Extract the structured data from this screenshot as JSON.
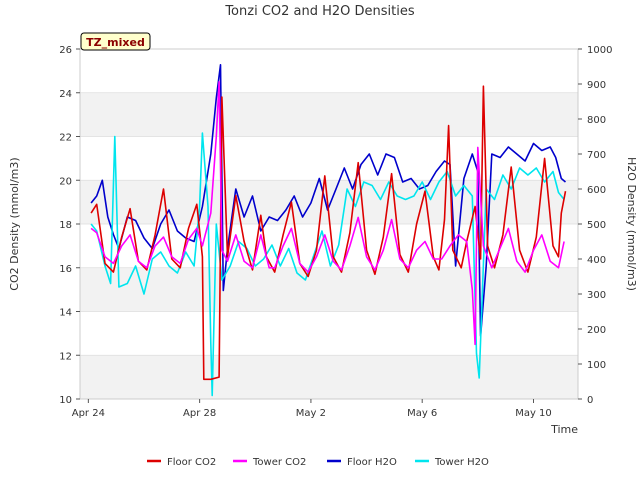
{
  "chart_data": {
    "type": "line",
    "title": "Tonzi CO2 and H2O Densities",
    "xlabel": "Time",
    "ylabel_left": "CO2 Density (mmol/m3)",
    "ylabel_right": "H2O Density (mmol/m3)",
    "ylim_left": [
      10,
      26
    ],
    "ylim_right": [
      0,
      1000
    ],
    "yticks_left": [
      10,
      12,
      14,
      16,
      18,
      20,
      22,
      24,
      26
    ],
    "yticks_right": [
      0,
      100,
      200,
      300,
      400,
      500,
      600,
      700,
      800,
      900,
      1000
    ],
    "xlim_days": [
      23.7,
      41.6
    ],
    "xticks": [
      {
        "day": 24,
        "label": "Apr 24"
      },
      {
        "day": 28,
        "label": "Apr 28"
      },
      {
        "day": 32,
        "label": "May 2"
      },
      {
        "day": 36,
        "label": "May 6"
      },
      {
        "day": 40,
        "label": "May 10"
      }
    ],
    "grid": "horizontal bands",
    "legend_position": "bottom",
    "annotation": "TZ_mixed",
    "series": [
      {
        "name": "Floor CO2",
        "axis": "left",
        "color": "#dd0000",
        "points": [
          [
            24.1,
            18.5
          ],
          [
            24.3,
            18.9
          ],
          [
            24.6,
            16.2
          ],
          [
            24.9,
            15.8
          ],
          [
            25.2,
            17.4
          ],
          [
            25.5,
            18.7
          ],
          [
            25.8,
            16.3
          ],
          [
            26.1,
            15.9
          ],
          [
            26.4,
            17.5
          ],
          [
            26.7,
            19.6
          ],
          [
            27.0,
            16.4
          ],
          [
            27.3,
            16.0
          ],
          [
            27.6,
            17.8
          ],
          [
            27.9,
            18.9
          ],
          [
            28.1,
            16.5
          ],
          [
            28.15,
            10.9
          ],
          [
            28.4,
            10.9
          ],
          [
            28.7,
            11.0
          ],
          [
            28.8,
            23.8
          ],
          [
            29.0,
            16.5
          ],
          [
            29.3,
            19.3
          ],
          [
            29.6,
            17.2
          ],
          [
            29.9,
            15.9
          ],
          [
            30.2,
            18.4
          ],
          [
            30.4,
            16.5
          ],
          [
            30.7,
            15.8
          ],
          [
            31.0,
            17.5
          ],
          [
            31.3,
            19.0
          ],
          [
            31.6,
            16.2
          ],
          [
            31.9,
            15.6
          ],
          [
            32.2,
            16.8
          ],
          [
            32.5,
            20.2
          ],
          [
            32.8,
            16.5
          ],
          [
            33.1,
            15.8
          ],
          [
            33.4,
            17.6
          ],
          [
            33.7,
            20.8
          ],
          [
            34.0,
            16.8
          ],
          [
            34.3,
            15.7
          ],
          [
            34.6,
            17.4
          ],
          [
            34.9,
            20.3
          ],
          [
            35.2,
            16.6
          ],
          [
            35.5,
            15.8
          ],
          [
            35.8,
            18.0
          ],
          [
            36.1,
            19.5
          ],
          [
            36.4,
            16.5
          ],
          [
            36.6,
            15.9
          ],
          [
            36.8,
            18.2
          ],
          [
            36.95,
            22.5
          ],
          [
            37.1,
            16.8
          ],
          [
            37.4,
            16.0
          ],
          [
            37.6,
            17.2
          ],
          [
            37.9,
            18.8
          ],
          [
            38.1,
            16.4
          ],
          [
            38.2,
            24.3
          ],
          [
            38.35,
            17.0
          ],
          [
            38.6,
            16.0
          ],
          [
            38.9,
            17.5
          ],
          [
            39.2,
            20.6
          ],
          [
            39.5,
            16.8
          ],
          [
            39.8,
            15.8
          ],
          [
            40.1,
            17.4
          ],
          [
            40.4,
            21.0
          ],
          [
            40.7,
            17.0
          ],
          [
            40.9,
            16.5
          ],
          [
            41.0,
            18.5
          ],
          [
            41.15,
            19.5
          ]
        ]
      },
      {
        "name": "Tower CO2",
        "axis": "left",
        "color": "#ff00ff",
        "points": [
          [
            24.1,
            17.8
          ],
          [
            24.3,
            17.6
          ],
          [
            24.6,
            16.5
          ],
          [
            24.9,
            16.2
          ],
          [
            25.2,
            17.0
          ],
          [
            25.5,
            17.5
          ],
          [
            25.8,
            16.3
          ],
          [
            26.1,
            16.0
          ],
          [
            26.4,
            17.0
          ],
          [
            26.7,
            17.4
          ],
          [
            27.0,
            16.5
          ],
          [
            27.3,
            16.2
          ],
          [
            27.6,
            17.3
          ],
          [
            27.9,
            17.8
          ],
          [
            28.1,
            17.0
          ],
          [
            28.4,
            18.5
          ],
          [
            28.6,
            22.0
          ],
          [
            28.7,
            24.5
          ],
          [
            28.8,
            16.8
          ],
          [
            29.0,
            16.3
          ],
          [
            29.3,
            17.5
          ],
          [
            29.6,
            16.3
          ],
          [
            29.9,
            16.0
          ],
          [
            30.2,
            17.5
          ],
          [
            30.5,
            16.0
          ],
          [
            30.7,
            16.0
          ],
          [
            31.0,
            17.0
          ],
          [
            31.3,
            17.8
          ],
          [
            31.6,
            16.2
          ],
          [
            31.9,
            15.8
          ],
          [
            32.2,
            16.5
          ],
          [
            32.5,
            17.5
          ],
          [
            32.8,
            16.3
          ],
          [
            33.1,
            15.9
          ],
          [
            33.4,
            17.0
          ],
          [
            33.7,
            18.3
          ],
          [
            34.0,
            16.5
          ],
          [
            34.3,
            15.9
          ],
          [
            34.6,
            16.8
          ],
          [
            34.9,
            18.2
          ],
          [
            35.2,
            16.4
          ],
          [
            35.5,
            16.0
          ],
          [
            35.8,
            16.8
          ],
          [
            36.1,
            17.2
          ],
          [
            36.4,
            16.4
          ],
          [
            36.7,
            16.4
          ],
          [
            37.0,
            17.0
          ],
          [
            37.3,
            17.5
          ],
          [
            37.6,
            17.2
          ],
          [
            37.8,
            15.0
          ],
          [
            37.9,
            12.5
          ],
          [
            38.0,
            21.5
          ],
          [
            38.2,
            17.0
          ],
          [
            38.5,
            16.0
          ],
          [
            38.8,
            16.9
          ],
          [
            39.1,
            17.8
          ],
          [
            39.4,
            16.3
          ],
          [
            39.7,
            15.8
          ],
          [
            40.0,
            16.8
          ],
          [
            40.3,
            17.5
          ],
          [
            40.6,
            16.3
          ],
          [
            40.9,
            16.0
          ],
          [
            41.1,
            17.2
          ]
        ]
      },
      {
        "name": "Floor H2O",
        "axis": "right",
        "color": "#0000cc",
        "points": [
          [
            24.1,
            560
          ],
          [
            24.3,
            580
          ],
          [
            24.5,
            625
          ],
          [
            24.7,
            520
          ],
          [
            24.9,
            470
          ],
          [
            25.1,
            430
          ],
          [
            25.4,
            520
          ],
          [
            25.7,
            510
          ],
          [
            26.0,
            460
          ],
          [
            26.3,
            430
          ],
          [
            26.6,
            500
          ],
          [
            26.9,
            540
          ],
          [
            27.2,
            480
          ],
          [
            27.5,
            460
          ],
          [
            27.8,
            450
          ],
          [
            28.1,
            550
          ],
          [
            28.4,
            700
          ],
          [
            28.6,
            860
          ],
          [
            28.75,
            955
          ],
          [
            28.85,
            310
          ],
          [
            29.0,
            430
          ],
          [
            29.3,
            600
          ],
          [
            29.6,
            520
          ],
          [
            29.9,
            580
          ],
          [
            30.2,
            480
          ],
          [
            30.5,
            520
          ],
          [
            30.8,
            510
          ],
          [
            31.1,
            540
          ],
          [
            31.4,
            580
          ],
          [
            31.7,
            520
          ],
          [
            32.0,
            560
          ],
          [
            32.3,
            630
          ],
          [
            32.6,
            540
          ],
          [
            32.9,
            600
          ],
          [
            33.2,
            660
          ],
          [
            33.5,
            600
          ],
          [
            33.8,
            670
          ],
          [
            34.1,
            700
          ],
          [
            34.4,
            640
          ],
          [
            34.7,
            700
          ],
          [
            35.0,
            690
          ],
          [
            35.3,
            620
          ],
          [
            35.6,
            630
          ],
          [
            35.9,
            600
          ],
          [
            36.2,
            610
          ],
          [
            36.5,
            650
          ],
          [
            36.8,
            680
          ],
          [
            37.0,
            670
          ],
          [
            37.2,
            380
          ],
          [
            37.5,
            630
          ],
          [
            37.8,
            700
          ],
          [
            38.0,
            650
          ],
          [
            38.1,
            180
          ],
          [
            38.3,
            380
          ],
          [
            38.5,
            700
          ],
          [
            38.8,
            690
          ],
          [
            39.1,
            720
          ],
          [
            39.4,
            700
          ],
          [
            39.7,
            680
          ],
          [
            40.0,
            730
          ],
          [
            40.3,
            710
          ],
          [
            40.6,
            720
          ],
          [
            40.8,
            690
          ],
          [
            41.0,
            630
          ],
          [
            41.15,
            620
          ]
        ]
      },
      {
        "name": "Tower H2O",
        "axis": "right",
        "color": "#00e5ee",
        "points": [
          [
            24.1,
            500
          ],
          [
            24.3,
            480
          ],
          [
            24.6,
            380
          ],
          [
            24.8,
            330
          ],
          [
            24.95,
            750
          ],
          [
            25.1,
            320
          ],
          [
            25.4,
            330
          ],
          [
            25.7,
            380
          ],
          [
            26.0,
            300
          ],
          [
            26.3,
            400
          ],
          [
            26.6,
            420
          ],
          [
            26.9,
            380
          ],
          [
            27.2,
            360
          ],
          [
            27.5,
            420
          ],
          [
            27.8,
            380
          ],
          [
            28.0,
            550
          ],
          [
            28.1,
            760
          ],
          [
            28.3,
            550
          ],
          [
            28.4,
            160
          ],
          [
            28.45,
            10
          ],
          [
            28.6,
            500
          ],
          [
            28.8,
            340
          ],
          [
            29.1,
            380
          ],
          [
            29.4,
            450
          ],
          [
            29.7,
            430
          ],
          [
            30.0,
            380
          ],
          [
            30.3,
            400
          ],
          [
            30.6,
            440
          ],
          [
            30.9,
            380
          ],
          [
            31.2,
            430
          ],
          [
            31.5,
            360
          ],
          [
            31.8,
            340
          ],
          [
            32.1,
            410
          ],
          [
            32.4,
            480
          ],
          [
            32.7,
            380
          ],
          [
            33.0,
            440
          ],
          [
            33.3,
            600
          ],
          [
            33.6,
            550
          ],
          [
            33.9,
            620
          ],
          [
            34.2,
            610
          ],
          [
            34.5,
            570
          ],
          [
            34.8,
            620
          ],
          [
            35.1,
            580
          ],
          [
            35.4,
            570
          ],
          [
            35.7,
            580
          ],
          [
            36.0,
            620
          ],
          [
            36.3,
            570
          ],
          [
            36.6,
            620
          ],
          [
            36.9,
            650
          ],
          [
            37.2,
            580
          ],
          [
            37.5,
            610
          ],
          [
            37.8,
            580
          ],
          [
            37.95,
            130
          ],
          [
            38.05,
            60
          ],
          [
            38.3,
            600
          ],
          [
            38.6,
            570
          ],
          [
            38.9,
            640
          ],
          [
            39.2,
            600
          ],
          [
            39.5,
            660
          ],
          [
            39.8,
            640
          ],
          [
            40.1,
            660
          ],
          [
            40.4,
            620
          ],
          [
            40.7,
            650
          ],
          [
            40.9,
            590
          ],
          [
            41.1,
            570
          ]
        ]
      }
    ]
  }
}
